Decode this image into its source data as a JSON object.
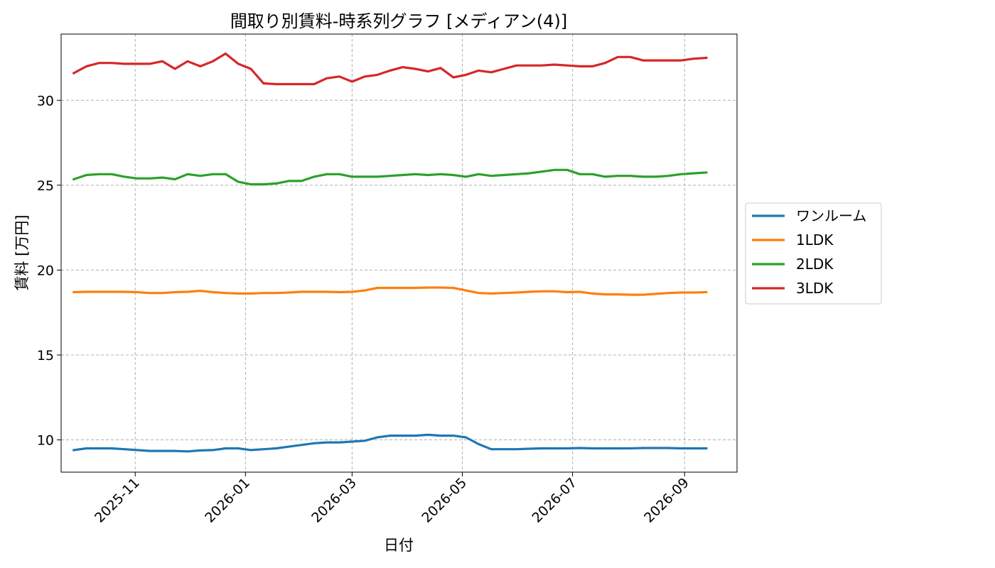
{
  "chart_data": {
    "type": "line",
    "title": "間取り別賃料-時系列グラフ [メディアン(4)]",
    "xlabel": "日付",
    "ylabel": "賃料 [万円]",
    "x_tick_labels": [
      "2025-11",
      "2026-01",
      "2026-03",
      "2026-05",
      "2026-07",
      "2026-09"
    ],
    "x_tick_dates": [
      "2025-11-01",
      "2026-01-01",
      "2026-03-01",
      "2026-05-01",
      "2026-07-01",
      "2026-09-01"
    ],
    "y_ticks": [
      10,
      15,
      20,
      25,
      30
    ],
    "ylim": [
      8.1,
      33.9
    ],
    "xlim": [
      "2025-09-21",
      "2026-09-30"
    ],
    "grid": true,
    "legend_position": "right",
    "x": [
      "2025-09-28",
      "2025-10-05",
      "2025-10-12",
      "2025-10-19",
      "2025-10-26",
      "2025-11-02",
      "2025-11-09",
      "2025-11-16",
      "2025-11-23",
      "2025-11-30",
      "2025-12-07",
      "2025-12-14",
      "2025-12-21",
      "2025-12-28",
      "2026-01-04",
      "2026-01-11",
      "2026-01-18",
      "2026-01-25",
      "2026-02-01",
      "2026-02-08",
      "2026-02-15",
      "2026-02-22",
      "2026-03-01",
      "2026-03-08",
      "2026-03-15",
      "2026-03-22",
      "2026-03-29",
      "2026-04-05",
      "2026-04-12",
      "2026-04-19",
      "2026-04-26",
      "2026-05-03",
      "2026-05-10",
      "2026-05-17",
      "2026-05-24",
      "2026-05-31",
      "2026-06-07",
      "2026-06-14",
      "2026-06-21",
      "2026-06-28",
      "2026-07-05",
      "2026-07-12",
      "2026-07-19",
      "2026-07-26",
      "2026-08-02",
      "2026-08-09",
      "2026-08-16",
      "2026-08-23",
      "2026-08-30",
      "2026-09-06",
      "2026-09-13"
    ],
    "series": [
      {
        "name": "ワンルーム",
        "color": "#1f77b4",
        "values": [
          9.4,
          9.5,
          9.5,
          9.5,
          9.45,
          9.4,
          9.35,
          9.35,
          9.35,
          9.32,
          9.38,
          9.4,
          9.5,
          9.5,
          9.4,
          9.45,
          9.5,
          9.6,
          9.7,
          9.8,
          9.85,
          9.85,
          9.9,
          9.95,
          10.15,
          10.25,
          10.25,
          10.25,
          10.3,
          10.25,
          10.25,
          10.15,
          9.75,
          9.45,
          9.45,
          9.45,
          9.48,
          9.5,
          9.5,
          9.5,
          9.52,
          9.5,
          9.5,
          9.5,
          9.5,
          9.52,
          9.52,
          9.52,
          9.5,
          9.5,
          9.5
        ]
      },
      {
        "name": "1LDK",
        "color": "#ff7f0e",
        "values": [
          18.7,
          18.72,
          18.72,
          18.72,
          18.72,
          18.7,
          18.65,
          18.65,
          18.7,
          18.72,
          18.78,
          18.7,
          18.65,
          18.62,
          18.62,
          18.65,
          18.65,
          18.68,
          18.72,
          18.72,
          18.72,
          18.7,
          18.72,
          18.8,
          18.95,
          18.95,
          18.95,
          18.95,
          18.97,
          18.97,
          18.95,
          18.8,
          18.65,
          18.62,
          18.65,
          18.68,
          18.72,
          18.75,
          18.75,
          18.7,
          18.72,
          18.62,
          18.57,
          18.57,
          18.55,
          18.55,
          18.6,
          18.65,
          18.68,
          18.68,
          18.7
        ]
      },
      {
        "name": "2LDK",
        "color": "#2ca02c",
        "values": [
          25.35,
          25.6,
          25.65,
          25.65,
          25.5,
          25.4,
          25.4,
          25.45,
          25.35,
          25.65,
          25.55,
          25.65,
          25.65,
          25.2,
          25.05,
          25.05,
          25.1,
          25.25,
          25.25,
          25.5,
          25.65,
          25.65,
          25.5,
          25.5,
          25.5,
          25.55,
          25.6,
          25.65,
          25.6,
          25.65,
          25.6,
          25.5,
          25.65,
          25.55,
          25.6,
          25.65,
          25.7,
          25.8,
          25.9,
          25.9,
          25.65,
          25.65,
          25.5,
          25.55,
          25.55,
          25.5,
          25.5,
          25.55,
          25.65,
          25.7,
          25.75
        ]
      },
      {
        "name": "3LDK",
        "color": "#d62728",
        "values": [
          31.6,
          32.0,
          32.2,
          32.2,
          32.15,
          32.15,
          32.15,
          32.3,
          31.85,
          32.3,
          32.0,
          32.3,
          32.75,
          32.15,
          31.85,
          31.0,
          30.95,
          30.95,
          30.95,
          30.95,
          31.3,
          31.4,
          31.1,
          31.4,
          31.5,
          31.75,
          31.95,
          31.85,
          31.7,
          31.9,
          31.35,
          31.5,
          31.75,
          31.65,
          31.85,
          32.05,
          32.05,
          32.05,
          32.1,
          32.05,
          32.0,
          32.0,
          32.2,
          32.55,
          32.55,
          32.35,
          32.35,
          32.35,
          32.35,
          32.45,
          32.5
        ]
      }
    ]
  }
}
